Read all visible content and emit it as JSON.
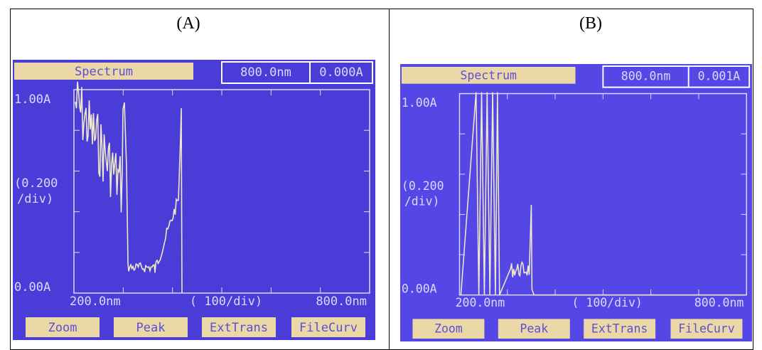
{
  "panels": [
    {
      "label": "(A)",
      "title": "Spectrum",
      "wavelength": "800.0nm",
      "absorbance": "0.000A",
      "y_top": "1.00A",
      "y_scale": [
        "(0.200",
        "/div)"
      ],
      "y_bottom": "0.00A",
      "x_left": "200.0nm",
      "x_scale": "( 100/div)",
      "x_right": "800.0nm",
      "buttons": [
        "Zoom",
        "Peak",
        "ExtTrans",
        "FileCurv"
      ]
    },
    {
      "label": "(B)",
      "title": "Spectrum",
      "wavelength": "800.0nm",
      "absorbance": "0.001A",
      "y_top": "1.00A",
      "y_scale": [
        "(0.200",
        "/div)"
      ],
      "y_bottom": "0.00A",
      "x_left": "200.0nm",
      "x_scale": "( 100/div)",
      "x_right": "800.0nm",
      "buttons": [
        "Zoom",
        "Peak",
        "ExtTrans",
        "FileCurv"
      ]
    }
  ]
}
